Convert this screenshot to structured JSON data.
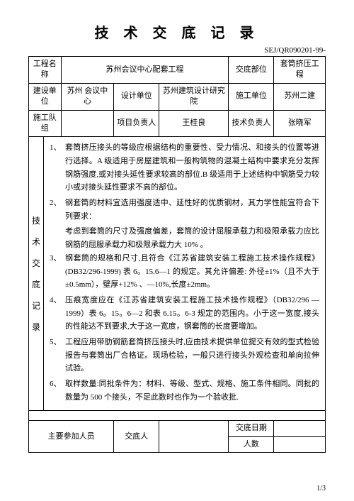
{
  "title": "技 术 交 底 记 录",
  "docno": "SEJ/QR090201-99-",
  "headers": {
    "project_name_label": "工程名称",
    "project_name": "苏州会议中心配套工程",
    "disclose_part_label": "交底部位",
    "disclose_part": "套筒挤压工程",
    "build_unit_label": "建设单位",
    "build_unit": "苏州 会议中心",
    "design_unit_label": "设计单位",
    "design_unit": "苏州建筑设计研究院",
    "construct_unit_label": "施工单位",
    "construct_unit": "苏州二建",
    "team_label": "施工队组",
    "pm_label": "项目负责人",
    "pm": "王桂良",
    "tech_lead_label": "技术负责人",
    "tech_lead": "张晓军"
  },
  "side_label": "技\n术\n交\n底\n记\n录",
  "items": [
    {
      "num": "1、",
      "text": "套筒挤压接头的等级应根据结构的重要性、受力情况、和接头的位置等进行选择。A 级适用于房屋建筑和一般构筑物的混凝土结构中要求充分发挥钢筋强度,或对接头延性要求较高的部位.B 级适用于上述结构中钢筋受力较小或对接头延性要求不高的部位。"
    },
    {
      "num": "2、",
      "text": "钢套筒的材料宜选用强度适中、延性好的优质钢材，其力学性能宜符合下列要求：",
      "sub": "考虑到套筒的尺寸及强度偏差，套筒的设计屈服承载力和极限承载力应比钢筋的屈服承载力和极限承载力大 10% 。"
    },
    {
      "num": "3、",
      "text": "钢套筒的规格和尺寸,且符合《江苏省建筑安装工程施工技术操作规程》(DB32/296-1999) 表 6。15.6—1 的规定。其允许偏差: 外径±1%（且不大于±0.5mm），壁厚+12% 、—10%,长度±2mm。"
    },
    {
      "num": "4、",
      "text": "压痕宽度应在《江苏省建筑安装工程施工技术操作规程》（DB32/296 —1999）表 6。15。6—2 和表 6.15。6-3 规定的范围内。小于这一宽度,接头的性能达不到要求,大于这一宽度，钢套筒的长度要增加。"
    },
    {
      "num": "5、",
      "text": "工程应用带肋钢筋套筒挤压接头时,应由技术提供单位提交有效的型式检验报告与套筒出厂合格证。现场检验，一般只进行接头外观检查和单向拉伸试验。"
    },
    {
      "num": "6、",
      "text": "取样数量:同批条件为：材料、等级、型式、规格、施工条件相同。同批的数量为 500 个接头，不足此数时也作为一个验收批."
    }
  ],
  "footer": {
    "participants_label": "主要参加人员",
    "discloser_label": "交底人",
    "date_label": "交底日期",
    "count_label": "人数"
  },
  "page": "1/3"
}
